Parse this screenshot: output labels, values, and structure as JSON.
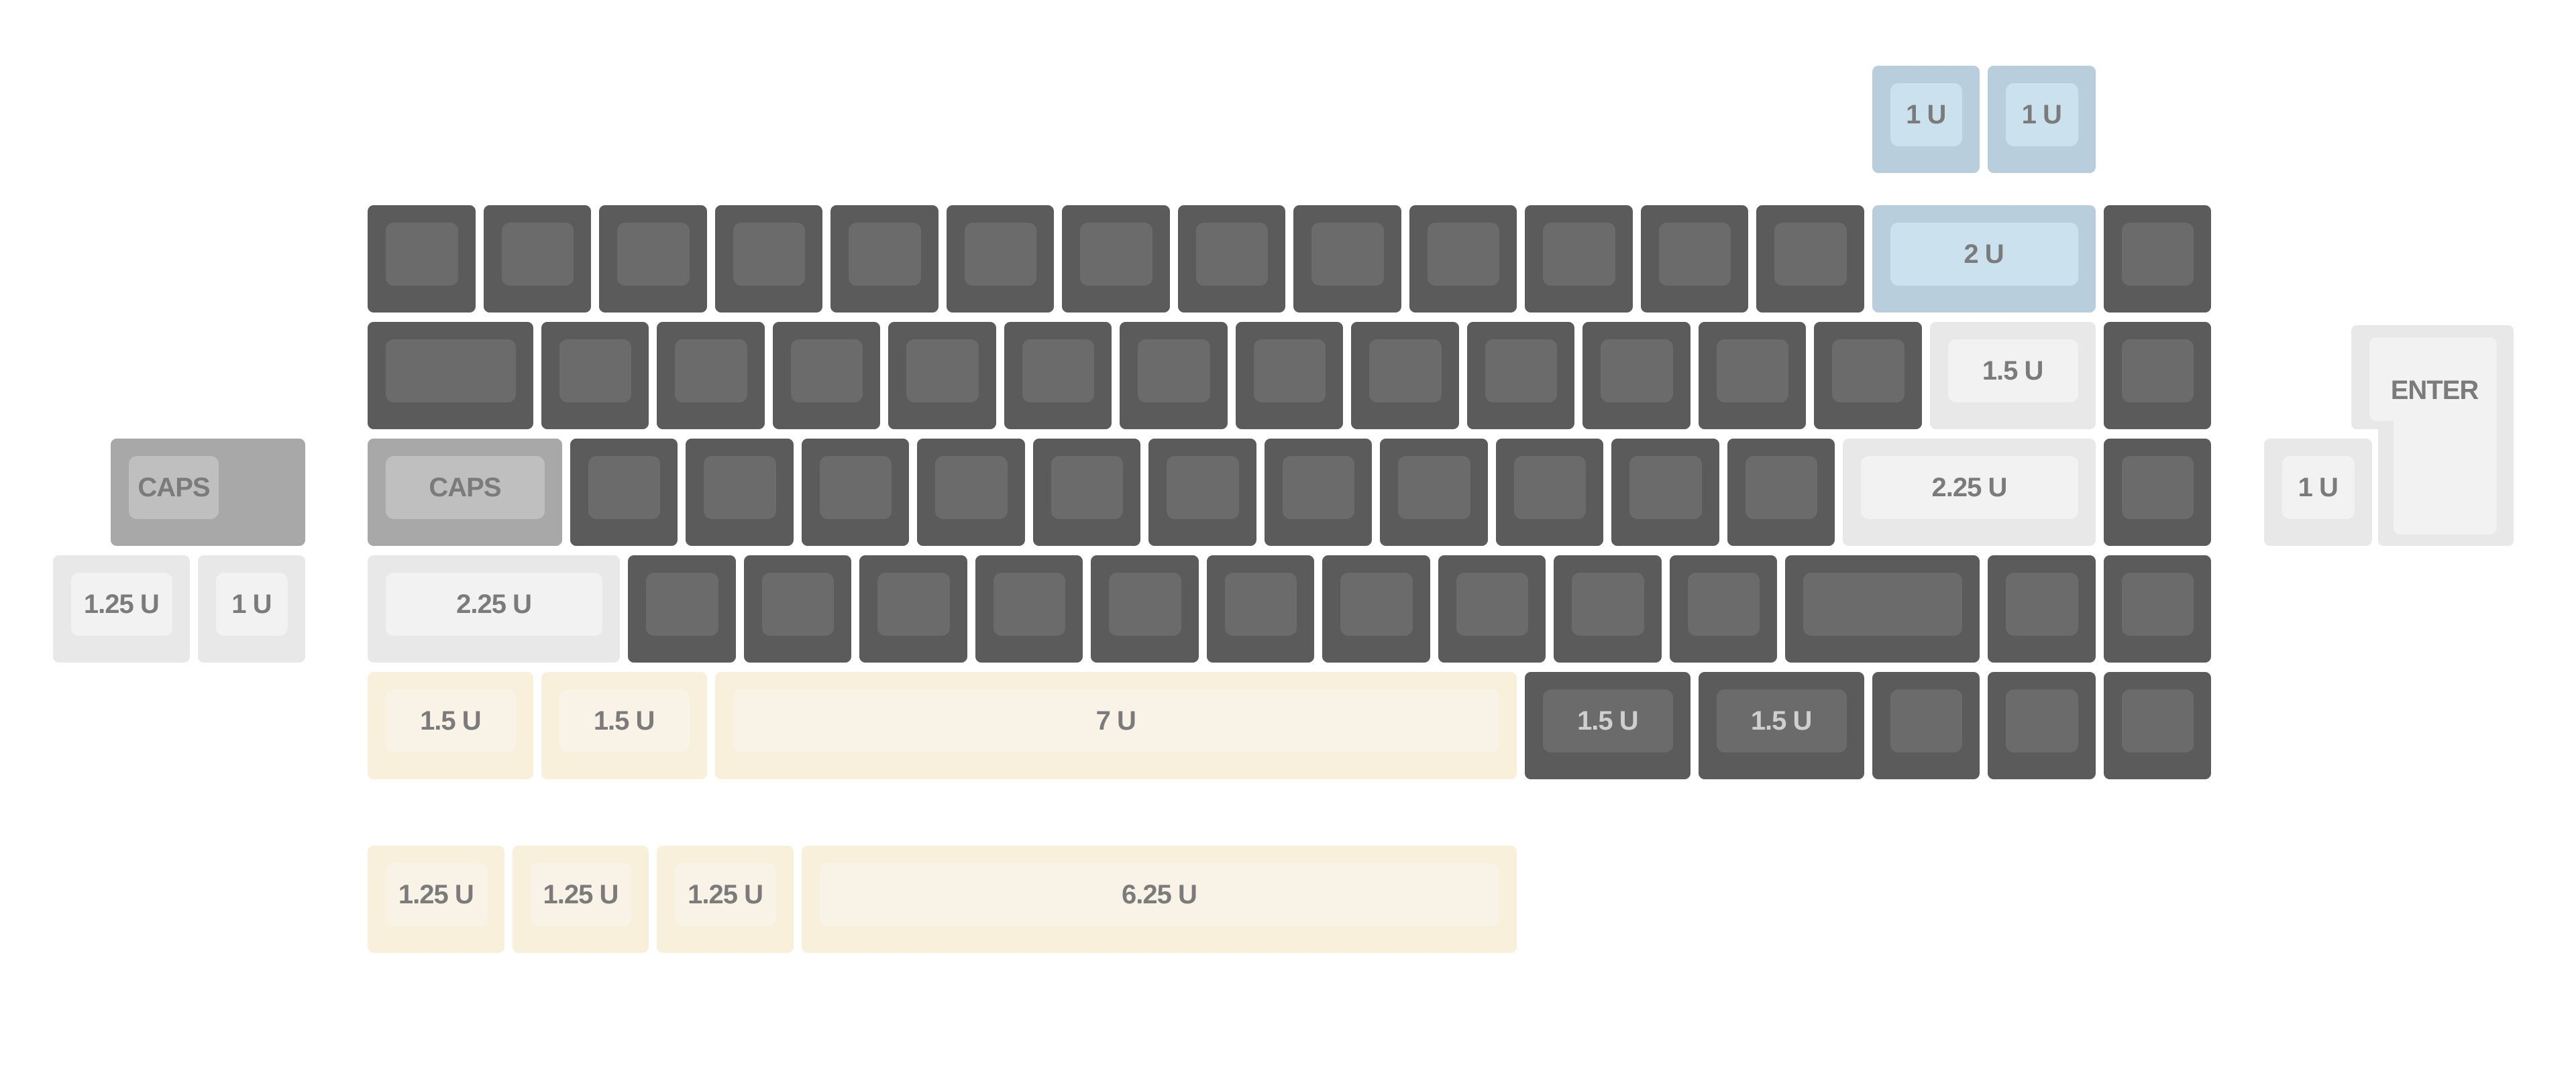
{
  "palette": {
    "dark": "#5a5b5a",
    "blue": "#b9cedc",
    "light": "#e8e8e8",
    "caps": "#a8a8a8",
    "yellow": "#f9f0db"
  },
  "split_backspace": [
    [
      {
        "u": 1,
        "c": "blue",
        "label": "1 U"
      },
      {
        "u": 1,
        "c": "blue",
        "label": "1 U"
      }
    ]
  ],
  "main": [
    [
      {
        "u": 1,
        "c": "dark"
      },
      {
        "u": 1,
        "c": "dark"
      },
      {
        "u": 1,
        "c": "dark"
      },
      {
        "u": 1,
        "c": "dark"
      },
      {
        "u": 1,
        "c": "dark"
      },
      {
        "u": 1,
        "c": "dark"
      },
      {
        "u": 1,
        "c": "dark"
      },
      {
        "u": 1,
        "c": "dark"
      },
      {
        "u": 1,
        "c": "dark"
      },
      {
        "u": 1,
        "c": "dark"
      },
      {
        "u": 1,
        "c": "dark"
      },
      {
        "u": 1,
        "c": "dark"
      },
      {
        "u": 1,
        "c": "dark"
      },
      {
        "u": 2,
        "c": "blue",
        "label": "2 U"
      },
      {
        "u": 1,
        "c": "dark"
      }
    ],
    [
      {
        "u": 1.5,
        "c": "dark"
      },
      {
        "u": 1,
        "c": "dark"
      },
      {
        "u": 1,
        "c": "dark"
      },
      {
        "u": 1,
        "c": "dark"
      },
      {
        "u": 1,
        "c": "dark"
      },
      {
        "u": 1,
        "c": "dark"
      },
      {
        "u": 1,
        "c": "dark"
      },
      {
        "u": 1,
        "c": "dark"
      },
      {
        "u": 1,
        "c": "dark"
      },
      {
        "u": 1,
        "c": "dark"
      },
      {
        "u": 1,
        "c": "dark"
      },
      {
        "u": 1,
        "c": "dark"
      },
      {
        "u": 1,
        "c": "dark"
      },
      {
        "u": 1.5,
        "c": "light",
        "label": "1.5 U"
      },
      {
        "u": 1,
        "c": "dark"
      }
    ],
    [
      {
        "u": 1.75,
        "c": "caps",
        "label": "CAPS"
      },
      {
        "u": 1,
        "c": "dark"
      },
      {
        "u": 1,
        "c": "dark"
      },
      {
        "u": 1,
        "c": "dark"
      },
      {
        "u": 1,
        "c": "dark"
      },
      {
        "u": 1,
        "c": "dark"
      },
      {
        "u": 1,
        "c": "dark"
      },
      {
        "u": 1,
        "c": "dark"
      },
      {
        "u": 1,
        "c": "dark"
      },
      {
        "u": 1,
        "c": "dark"
      },
      {
        "u": 1,
        "c": "dark"
      },
      {
        "u": 1,
        "c": "dark"
      },
      {
        "u": 2.25,
        "c": "light",
        "label": "2.25 U"
      },
      {
        "u": 1,
        "c": "dark"
      }
    ],
    [
      {
        "u": 2.25,
        "c": "light",
        "label": "2.25 U"
      },
      {
        "u": 1,
        "c": "dark"
      },
      {
        "u": 1,
        "c": "dark"
      },
      {
        "u": 1,
        "c": "dark"
      },
      {
        "u": 1,
        "c": "dark"
      },
      {
        "u": 1,
        "c": "dark"
      },
      {
        "u": 1,
        "c": "dark"
      },
      {
        "u": 1,
        "c": "dark"
      },
      {
        "u": 1,
        "c": "dark"
      },
      {
        "u": 1,
        "c": "dark"
      },
      {
        "u": 1,
        "c": "dark"
      },
      {
        "u": 1.75,
        "c": "dark"
      },
      {
        "u": 1,
        "c": "dark"
      },
      {
        "u": 1,
        "c": "dark"
      }
    ],
    [
      {
        "u": 1.5,
        "c": "yellow",
        "label": "1.5 U"
      },
      {
        "u": 1.5,
        "c": "yellow",
        "label": "1.5 U"
      },
      {
        "u": 7,
        "c": "yellow",
        "label": "7 U"
      },
      {
        "u": 1.5,
        "c": "dark",
        "label": "1.5 U"
      },
      {
        "u": 1.5,
        "c": "dark",
        "label": "1.5 U"
      },
      {
        "u": 1,
        "c": "dark"
      },
      {
        "u": 1,
        "c": "dark"
      },
      {
        "u": 1,
        "c": "dark"
      }
    ]
  ],
  "alt_bottom": [
    [
      {
        "u": 1.25,
        "c": "yellow",
        "label": "1.25 U"
      },
      {
        "u": 1.25,
        "c": "yellow",
        "label": "1.25 U"
      },
      {
        "u": 1.25,
        "c": "yellow",
        "label": "1.25 U"
      },
      {
        "u": 6.25,
        "c": "yellow",
        "label": "6.25 U"
      }
    ]
  ],
  "alt_left_caps": [
    [
      {
        "u": 1.75,
        "c": "caps",
        "label": "CAPS",
        "stepped": true
      }
    ]
  ],
  "alt_left_shift": [
    [
      {
        "u": 1.25,
        "c": "light",
        "label": "1.25 U"
      },
      {
        "u": 1,
        "c": "light",
        "label": "1 U"
      }
    ]
  ],
  "alt_right": [
    [
      {
        "u": 1,
        "c": "light",
        "label": "1 U"
      }
    ]
  ],
  "iso_enter": {
    "label": "ENTER",
    "c": "light"
  }
}
